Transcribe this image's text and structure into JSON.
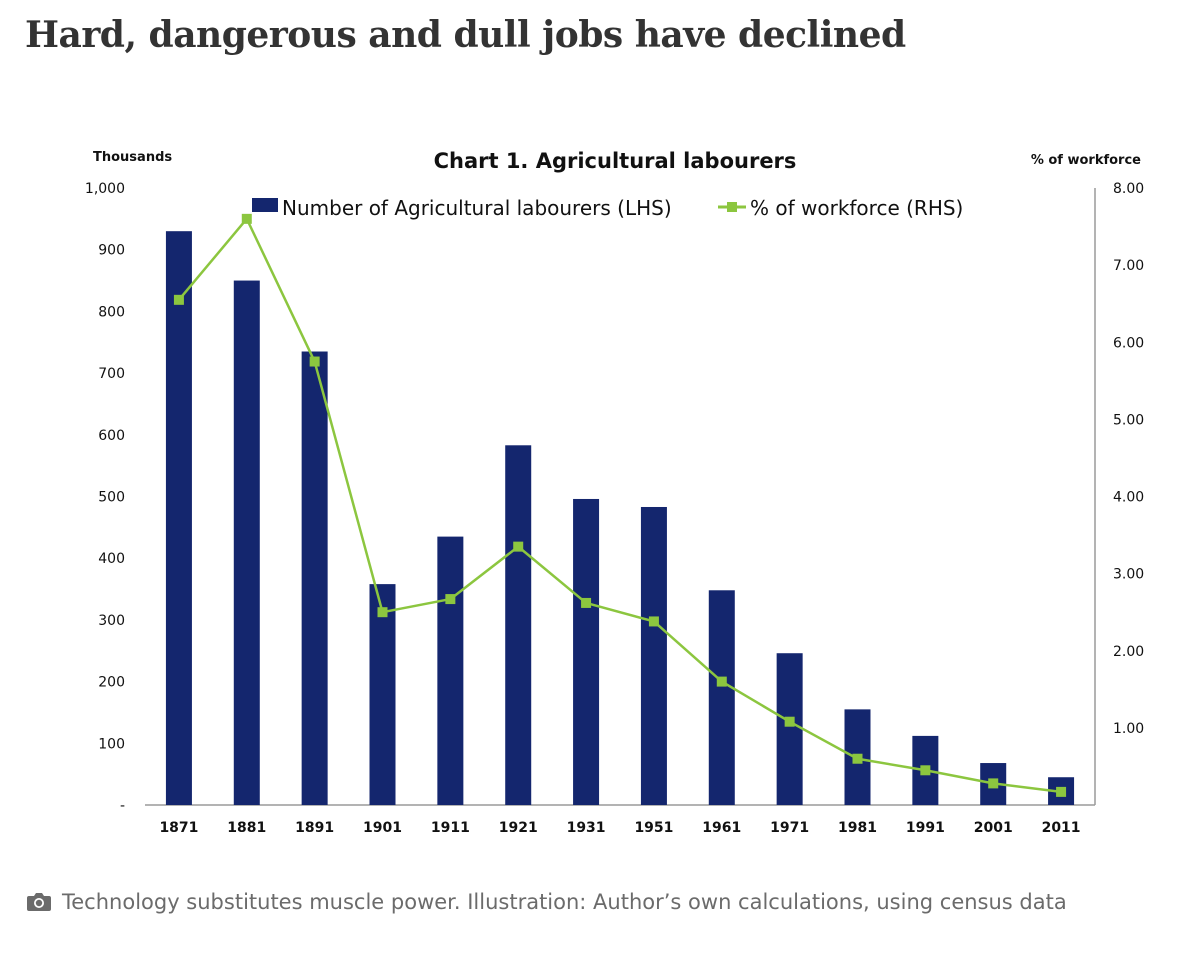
{
  "headline": "Hard, dangerous and dull jobs have declined",
  "caption": {
    "icon": "camera-icon",
    "text": "Technology substitutes muscle power. Illustration: Author’s own calculations, using census data"
  },
  "colors": {
    "bar": "#14266e",
    "line": "#8cc63f",
    "axis": "#9a9a9a"
  },
  "chart_data": {
    "type": "bar",
    "title": "Chart 1. Agricultural labourers",
    "categories": [
      "1871",
      "1881",
      "1891",
      "1901",
      "1911",
      "1921",
      "1931",
      "1951",
      "1961",
      "1971",
      "1981",
      "1991",
      "2001",
      "2011"
    ],
    "series": [
      {
        "name": "Number of Agricultural labourers (LHS)",
        "type": "bar",
        "axis": "left",
        "values": [
          930,
          850,
          735,
          358,
          435,
          583,
          496,
          483,
          348,
          246,
          155,
          112,
          68,
          45
        ]
      },
      {
        "name": "% of workforce (RHS)",
        "type": "line",
        "axis": "right",
        "values": [
          6.55,
          7.6,
          5.75,
          2.5,
          2.67,
          3.35,
          2.62,
          2.38,
          1.6,
          1.08,
          0.6,
          0.45,
          0.28,
          0.17
        ]
      }
    ],
    "left_axis": {
      "label": "Thousands",
      "ylim": [
        0,
        1000
      ],
      "ticks": [
        "-",
        "100",
        "200",
        "300",
        "400",
        "500",
        "600",
        "700",
        "800",
        "900",
        "1,000"
      ]
    },
    "right_axis": {
      "label": "% of workforce",
      "ylim": [
        0,
        8
      ],
      "ticks": [
        "1.00",
        "2.00",
        "3.00",
        "4.00",
        "5.00",
        "6.00",
        "7.00",
        "8.00"
      ]
    },
    "legend_position": "top-center"
  }
}
